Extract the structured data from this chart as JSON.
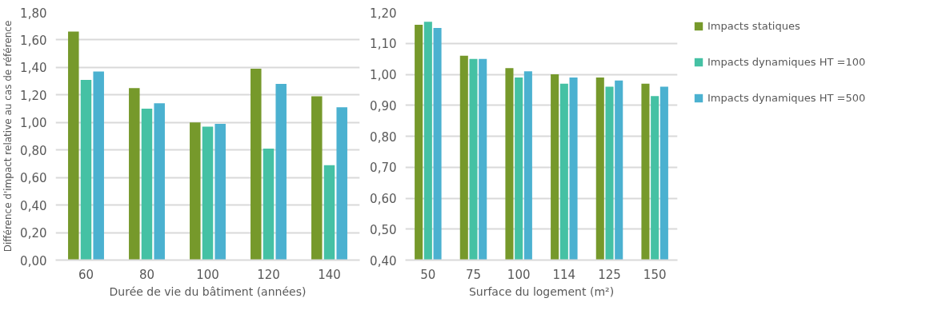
{
  "chart_data": [
    {
      "type": "bar",
      "xlabel": "Durée de vie du bâtiment (années)",
      "ylabel": "Différence d'impact relative au cas de référence",
      "categories": [
        "60",
        "80",
        "100",
        "120",
        "140"
      ],
      "series": [
        {
          "color": "#76992b",
          "values": [
            1.66,
            1.25,
            1.0,
            1.39,
            1.19
          ]
        },
        {
          "color": "#45c1a4",
          "values": [
            1.31,
            1.1,
            0.97,
            0.81,
            0.69
          ]
        },
        {
          "color": "#4bb1d0",
          "values": [
            1.37,
            1.14,
            0.99,
            1.28,
            1.11
          ]
        }
      ],
      "ylim": [
        0,
        1.8
      ],
      "yticks": [
        {
          "value": 0,
          "label": "0,00"
        },
        {
          "value": 0.2,
          "label": "0,20"
        },
        {
          "value": 0.4,
          "label": "0,40"
        },
        {
          "value": 0.6,
          "label": "0,60"
        },
        {
          "value": 0.8,
          "label": "0,80"
        },
        {
          "value": 1.0,
          "label": "1,00"
        },
        {
          "value": 1.2,
          "label": "1,20"
        },
        {
          "value": 1.4,
          "label": "1,40"
        },
        {
          "value": 1.6,
          "label": "1,60"
        },
        {
          "value": 1.8,
          "label": "1,80"
        }
      ],
      "grid": "y"
    },
    {
      "type": "bar",
      "xlabel": "Surface du logement (m²)",
      "categories": [
        "50",
        "75",
        "100",
        "114",
        "125",
        "150"
      ],
      "series": [
        {
          "name": "Impacts statiques",
          "color": "#76992b",
          "values": [
            1.16,
            1.06,
            1.02,
            1.0,
            0.99,
            0.97
          ]
        },
        {
          "name": "Impacts dynamiques HT =100",
          "color": "#45c1a4",
          "values": [
            1.17,
            1.05,
            0.99,
            0.97,
            0.96,
            0.93
          ]
        },
        {
          "name": "Impacts dynamiques HT =500",
          "color": "#4bb1d0",
          "values": [
            1.15,
            1.05,
            1.01,
            0.99,
            0.98,
            0.96
          ]
        }
      ],
      "ylim": [
        0.4,
        1.2
      ],
      "yticks": [
        {
          "value": 0.4,
          "label": "0,40"
        },
        {
          "value": 0.5,
          "label": "0,50"
        },
        {
          "value": 0.6,
          "label": "0,60"
        },
        {
          "value": 0.7,
          "label": "0,70"
        },
        {
          "value": 0.8,
          "label": "0,80"
        },
        {
          "value": 0.9,
          "label": "0,90"
        },
        {
          "value": 1.0,
          "label": "1,00"
        },
        {
          "value": 1.1,
          "label": "1,10"
        },
        {
          "value": 1.2,
          "label": "1,20"
        }
      ],
      "grid": "y",
      "legend": "right"
    }
  ]
}
